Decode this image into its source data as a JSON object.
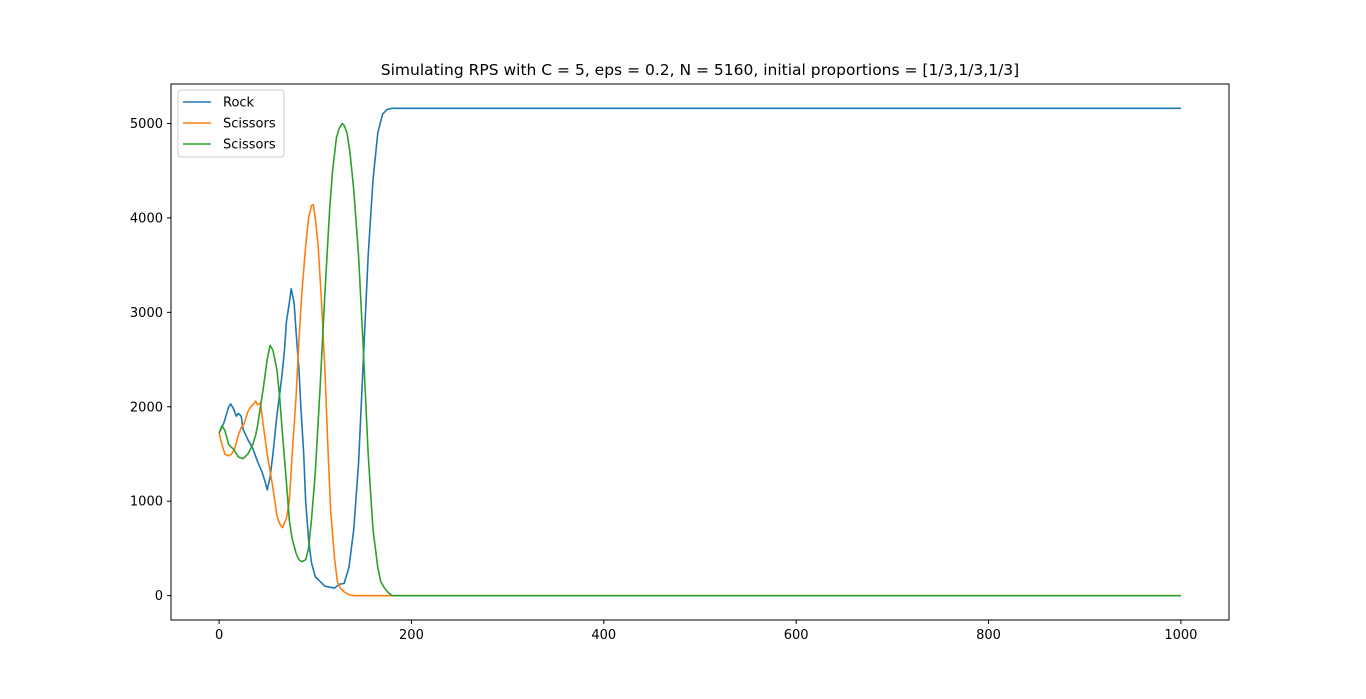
{
  "chart_data": {
    "type": "line",
    "title": "Simulating RPS with C = 5, eps = 0.2, N = 5160, initial proportions = [1/3,1/3,1/3]",
    "xlabel": "",
    "ylabel": "",
    "xlim": [
      -50,
      1050
    ],
    "ylim": [
      -258,
      5418
    ],
    "x_ticks": [
      0,
      200,
      400,
      600,
      800,
      1000
    ],
    "y_ticks": [
      0,
      1000,
      2000,
      3000,
      4000,
      5000
    ],
    "grid": false,
    "legend": {
      "position": "top-left"
    },
    "series": [
      {
        "name": "Rock",
        "color": "#1f77b4",
        "points": [
          [
            0,
            1720
          ],
          [
            5,
            1830
          ],
          [
            10,
            2000
          ],
          [
            12,
            2030
          ],
          [
            15,
            1980
          ],
          [
            18,
            1900
          ],
          [
            20,
            1930
          ],
          [
            23,
            1900
          ],
          [
            25,
            1760
          ],
          [
            30,
            1650
          ],
          [
            35,
            1560
          ],
          [
            40,
            1420
          ],
          [
            45,
            1300
          ],
          [
            48,
            1200
          ],
          [
            50,
            1120
          ],
          [
            53,
            1250
          ],
          [
            56,
            1500
          ],
          [
            60,
            1900
          ],
          [
            65,
            2300
          ],
          [
            68,
            2600
          ],
          [
            70,
            2900
          ],
          [
            73,
            3100
          ],
          [
            75,
            3250
          ],
          [
            78,
            3100
          ],
          [
            80,
            2800
          ],
          [
            83,
            2400
          ],
          [
            85,
            2000
          ],
          [
            88,
            1500
          ],
          [
            90,
            1000
          ],
          [
            93,
            600
          ],
          [
            96,
            350
          ],
          [
            100,
            200
          ],
          [
            105,
            150
          ],
          [
            110,
            100
          ],
          [
            115,
            90
          ],
          [
            120,
            80
          ],
          [
            125,
            120
          ],
          [
            130,
            130
          ],
          [
            135,
            300
          ],
          [
            140,
            700
          ],
          [
            145,
            1400
          ],
          [
            150,
            2500
          ],
          [
            155,
            3600
          ],
          [
            160,
            4400
          ],
          [
            165,
            4900
          ],
          [
            170,
            5100
          ],
          [
            175,
            5150
          ],
          [
            180,
            5160
          ],
          [
            1000,
            5160
          ]
        ]
      },
      {
        "name": "Scissors",
        "color": "#ff7f0e",
        "points": [
          [
            0,
            1720
          ],
          [
            3,
            1600
          ],
          [
            6,
            1500
          ],
          [
            10,
            1480
          ],
          [
            13,
            1500
          ],
          [
            16,
            1550
          ],
          [
            20,
            1700
          ],
          [
            23,
            1780
          ],
          [
            26,
            1820
          ],
          [
            30,
            1950
          ],
          [
            33,
            2000
          ],
          [
            36,
            2030
          ],
          [
            38,
            2060
          ],
          [
            40,
            2020
          ],
          [
            43,
            2040
          ],
          [
            46,
            1800
          ],
          [
            50,
            1500
          ],
          [
            55,
            1200
          ],
          [
            58,
            1000
          ],
          [
            60,
            850
          ],
          [
            63,
            760
          ],
          [
            66,
            720
          ],
          [
            70,
            820
          ],
          [
            73,
            1000
          ],
          [
            76,
            1500
          ],
          [
            80,
            2100
          ],
          [
            83,
            2700
          ],
          [
            86,
            3200
          ],
          [
            90,
            3700
          ],
          [
            93,
            4000
          ],
          [
            96,
            4130
          ],
          [
            98,
            4140
          ],
          [
            100,
            4000
          ],
          [
            103,
            3700
          ],
          [
            106,
            3200
          ],
          [
            110,
            2400
          ],
          [
            113,
            1600
          ],
          [
            116,
            900
          ],
          [
            120,
            400
          ],
          [
            123,
            150
          ],
          [
            126,
            80
          ],
          [
            130,
            40
          ],
          [
            135,
            10
          ],
          [
            140,
            0
          ],
          [
            1000,
            0
          ]
        ]
      },
      {
        "name": "Scissors",
        "color": "#2ca02c",
        "points": [
          [
            0,
            1720
          ],
          [
            3,
            1800
          ],
          [
            6,
            1750
          ],
          [
            10,
            1600
          ],
          [
            15,
            1550
          ],
          [
            20,
            1470
          ],
          [
            25,
            1450
          ],
          [
            30,
            1500
          ],
          [
            35,
            1600
          ],
          [
            38,
            1700
          ],
          [
            40,
            1800
          ],
          [
            43,
            2000
          ],
          [
            46,
            2200
          ],
          [
            50,
            2500
          ],
          [
            53,
            2650
          ],
          [
            56,
            2600
          ],
          [
            60,
            2400
          ],
          [
            63,
            2100
          ],
          [
            66,
            1700
          ],
          [
            70,
            1200
          ],
          [
            73,
            800
          ],
          [
            76,
            600
          ],
          [
            80,
            450
          ],
          [
            83,
            380
          ],
          [
            86,
            360
          ],
          [
            90,
            380
          ],
          [
            93,
            500
          ],
          [
            96,
            800
          ],
          [
            100,
            1300
          ],
          [
            105,
            2200
          ],
          [
            110,
            3200
          ],
          [
            115,
            4100
          ],
          [
            118,
            4500
          ],
          [
            122,
            4850
          ],
          [
            125,
            4950
          ],
          [
            128,
            5000
          ],
          [
            130,
            4980
          ],
          [
            133,
            4900
          ],
          [
            136,
            4700
          ],
          [
            140,
            4300
          ],
          [
            145,
            3600
          ],
          [
            150,
            2600
          ],
          [
            155,
            1500
          ],
          [
            160,
            700
          ],
          [
            165,
            300
          ],
          [
            168,
            150
          ],
          [
            172,
            80
          ],
          [
            176,
            30
          ],
          [
            180,
            0
          ],
          [
            1000,
            0
          ]
        ]
      }
    ]
  }
}
